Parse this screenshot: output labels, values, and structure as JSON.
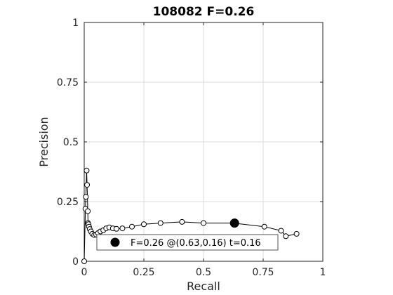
{
  "chart_data": {
    "type": "line",
    "title": "108082 F=0.26",
    "xlabel": "Recall",
    "ylabel": "Precision",
    "xlim": [
      0,
      1
    ],
    "ylim": [
      0,
      1
    ],
    "grid": true,
    "xticks": [
      0,
      0.25,
      0.5,
      0.75,
      1
    ],
    "xtick_labels": [
      "0",
      "0.25",
      "0.5",
      "0.75",
      "1"
    ],
    "yticks": [
      0,
      0.25,
      0.5,
      0.75,
      1
    ],
    "ytick_labels": [
      "0",
      "0.25",
      "0.5",
      "0.75",
      "1"
    ],
    "series": [
      {
        "x": [
          0.0,
          0.005,
          0.007,
          0.01,
          0.012,
          0.015,
          0.016,
          0.018,
          0.02,
          0.023,
          0.028,
          0.034,
          0.042,
          0.05,
          0.058,
          0.068,
          0.08,
          0.092,
          0.105,
          0.12,
          0.135,
          0.16,
          0.2,
          0.25,
          0.32,
          0.41,
          0.5,
          0.625,
          0.755,
          0.825,
          0.845,
          0.89
        ],
        "y": [
          0.0,
          0.22,
          0.27,
          0.38,
          0.32,
          0.21,
          0.16,
          0.155,
          0.145,
          0.135,
          0.125,
          0.115,
          0.11,
          0.112,
          0.118,
          0.125,
          0.13,
          0.138,
          0.142,
          0.138,
          0.136,
          0.138,
          0.145,
          0.155,
          0.16,
          0.165,
          0.16,
          0.16,
          0.145,
          0.128,
          0.105,
          0.115
        ]
      }
    ],
    "best_point": {
      "x": 0.63,
      "y": 0.16
    },
    "legend": {
      "text": "F=0.26 @(0.63,0.16) t=0.16",
      "position": "bottom-center"
    }
  }
}
